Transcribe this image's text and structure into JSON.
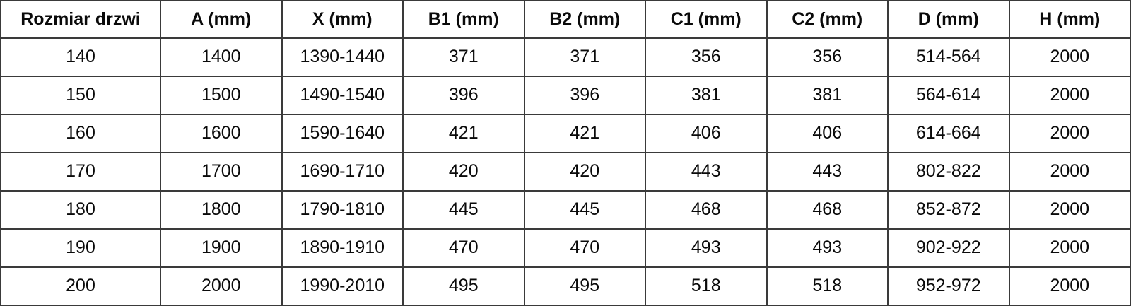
{
  "table": {
    "name": "door-size-specifications",
    "columns": [
      "Rozmiar drzwi",
      "A (mm)",
      "X (mm)",
      "B1 (mm)",
      "B2 (mm)",
      "C1 (mm)",
      "C2 (mm)",
      "D (mm)",
      "H (mm)"
    ],
    "rows": [
      [
        "140",
        "1400",
        "1390-1440",
        "371",
        "371",
        "356",
        "356",
        "514-564",
        "2000"
      ],
      [
        "150",
        "1500",
        "1490-1540",
        "396",
        "396",
        "381",
        "381",
        "564-614",
        "2000"
      ],
      [
        "160",
        "1600",
        "1590-1640",
        "421",
        "421",
        "406",
        "406",
        "614-664",
        "2000"
      ],
      [
        "170",
        "1700",
        "1690-1710",
        "420",
        "420",
        "443",
        "443",
        "802-822",
        "2000"
      ],
      [
        "180",
        "1800",
        "1790-1810",
        "445",
        "445",
        "468",
        "468",
        "852-872",
        "2000"
      ],
      [
        "190",
        "1900",
        "1890-1910",
        "470",
        "470",
        "493",
        "493",
        "902-922",
        "2000"
      ],
      [
        "200",
        "2000",
        "1990-2010",
        "495",
        "495",
        "518",
        "518",
        "952-972",
        "2000"
      ]
    ]
  },
  "colors": {
    "border": "#3a3a3a",
    "text": "#0a0a0a",
    "background": "#ffffff"
  }
}
